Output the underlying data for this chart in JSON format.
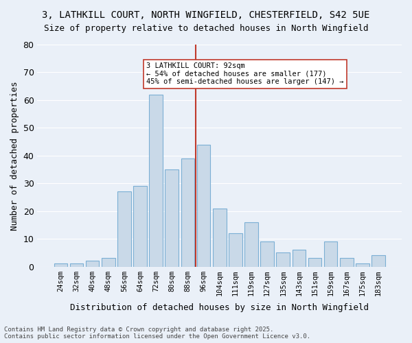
{
  "title_line1": "3, LATHKILL COURT, NORTH WINGFIELD, CHESTERFIELD, S42 5UE",
  "title_line2": "Size of property relative to detached houses in North Wingfield",
  "xlabel": "Distribution of detached houses by size in North Wingfield",
  "ylabel": "Number of detached properties",
  "categories": [
    "24sqm",
    "32sqm",
    "40sqm",
    "48sqm",
    "56sqm",
    "64sqm",
    "72sqm",
    "80sqm",
    "88sqm",
    "96sqm",
    "104sqm",
    "111sqm",
    "119sqm",
    "127sqm",
    "135sqm",
    "143sqm",
    "151sqm",
    "159sqm",
    "167sqm",
    "175sqm",
    "183sqm"
  ],
  "values": [
    1,
    1,
    2,
    3,
    27,
    29,
    62,
    35,
    39,
    44,
    21,
    12,
    16,
    9,
    5,
    6,
    3,
    9,
    3,
    1,
    4
  ],
  "bar_color": "#c9d9e8",
  "bar_edge_color": "#7bafd4",
  "vline_x": 9,
  "vline_color": "#c0392b",
  "annotation_text": "3 LATHKILL COURT: 92sqm\n← 54% of detached houses are smaller (177)\n45% of semi-detached houses are larger (147) →",
  "annotation_box_color": "white",
  "annotation_box_edge_color": "#c0392b",
  "ylim": [
    0,
    80
  ],
  "yticks": [
    0,
    10,
    20,
    30,
    40,
    50,
    60,
    70,
    80
  ],
  "background_color": "#eaf0f8",
  "grid_color": "white",
  "footer_line1": "Contains HM Land Registry data © Crown copyright and database right 2025.",
  "footer_line2": "Contains public sector information licensed under the Open Government Licence v3.0."
}
